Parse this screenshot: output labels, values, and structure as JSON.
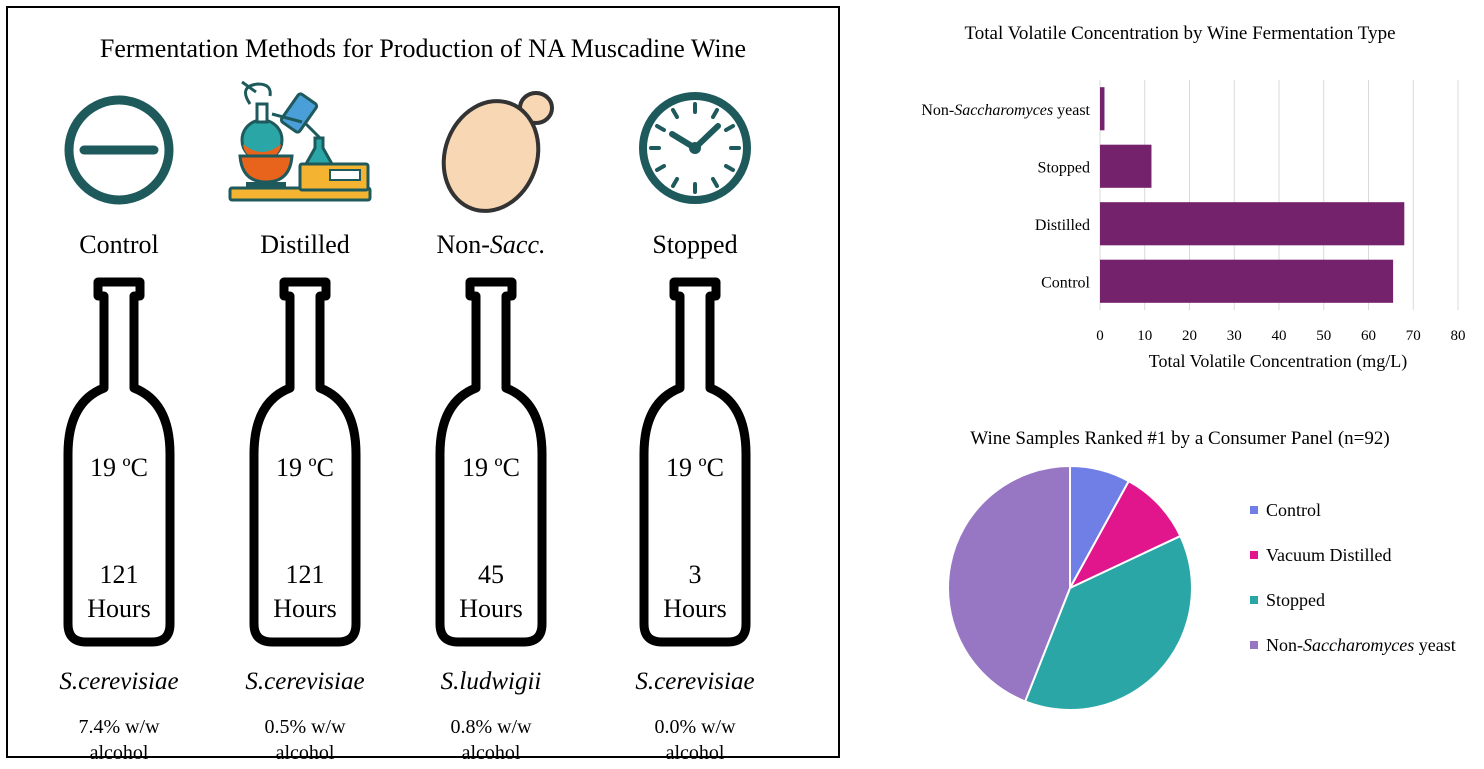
{
  "panel": {
    "title": "Fermentation Methods for Production of NA Muscadine Wine",
    "methods": [
      {
        "label_main": "Control",
        "label_italic": "",
        "temperature": "19 ºC",
        "hours_value": "121",
        "hours_unit": "Hours",
        "species": "S.cerevisiae",
        "alcohol_value": "7.4% w/w",
        "alcohol_unit": "alcohol",
        "icon": "minus-circle-icon"
      },
      {
        "label_main": "Distilled",
        "label_italic": "",
        "temperature": "19 ºC",
        "hours_value": "121",
        "hours_unit": "Hours",
        "species": "S.cerevisiae",
        "alcohol_value": "0.5% w/w",
        "alcohol_unit": "alcohol",
        "icon": "laboratory-distillation-icon"
      },
      {
        "label_main": "Non-",
        "label_italic": "Sacc.",
        "temperature": "19 ºC",
        "hours_value": "45",
        "hours_unit": "Hours",
        "species": "S.ludwigii",
        "alcohol_value": "0.8% w/w",
        "alcohol_unit": "alcohol",
        "icon": "yeast-cell-icon"
      },
      {
        "label_main": "Stopped",
        "label_italic": "",
        "temperature": "19 ºC",
        "hours_value": "3",
        "hours_unit": "Hours",
        "species": "S.cerevisiae",
        "alcohol_value": "0.0% w/w",
        "alcohol_unit": "alcohol",
        "icon": "clock-icon"
      }
    ]
  },
  "chart_data": [
    {
      "type": "bar",
      "orientation": "horizontal",
      "title": "Total Volatile Concentration by Wine Fermentation Type",
      "xlabel": "Total Volatile Concentration (mg/L)",
      "ylabel": "",
      "categories": [
        {
          "main": "Non-",
          "italic": "Saccharomyces",
          "rest": " yeast"
        },
        {
          "main": "Stopped",
          "italic": "",
          "rest": ""
        },
        {
          "main": "Distilled",
          "italic": "",
          "rest": ""
        },
        {
          "main": "Control",
          "italic": "",
          "rest": ""
        }
      ],
      "values": [
        1,
        11.5,
        68,
        65.5
      ],
      "xlim": [
        0,
        80
      ],
      "xticks": [
        "0",
        "10",
        "20",
        "30",
        "40",
        "50",
        "60",
        "70",
        "80"
      ],
      "tick_values": [
        0,
        10,
        20,
        30,
        40,
        50,
        60,
        70,
        80
      ],
      "grid": true,
      "color": "#74226c"
    },
    {
      "type": "pie",
      "title": "Wine Samples Ranked #1 by a Consumer Panel (n=92)",
      "slices": [
        {
          "main": "Control",
          "italic": "",
          "rest": "",
          "value": 8,
          "color": "#6f7fe6"
        },
        {
          "main": "Vacuum Distilled",
          "italic": "",
          "rest": "",
          "value": 10,
          "color": "#e1168d"
        },
        {
          "main": "Stopped",
          "italic": "",
          "rest": "",
          "value": 38,
          "color": "#2aa6a6"
        },
        {
          "main": "Non-",
          "italic": "Saccharomyces",
          "rest": " yeast",
          "value": 44,
          "color": "#9777c4"
        }
      ],
      "legend": "right"
    }
  ],
  "colors": {
    "icon_teal": "#1e5a5c",
    "bar": "#74226c"
  }
}
